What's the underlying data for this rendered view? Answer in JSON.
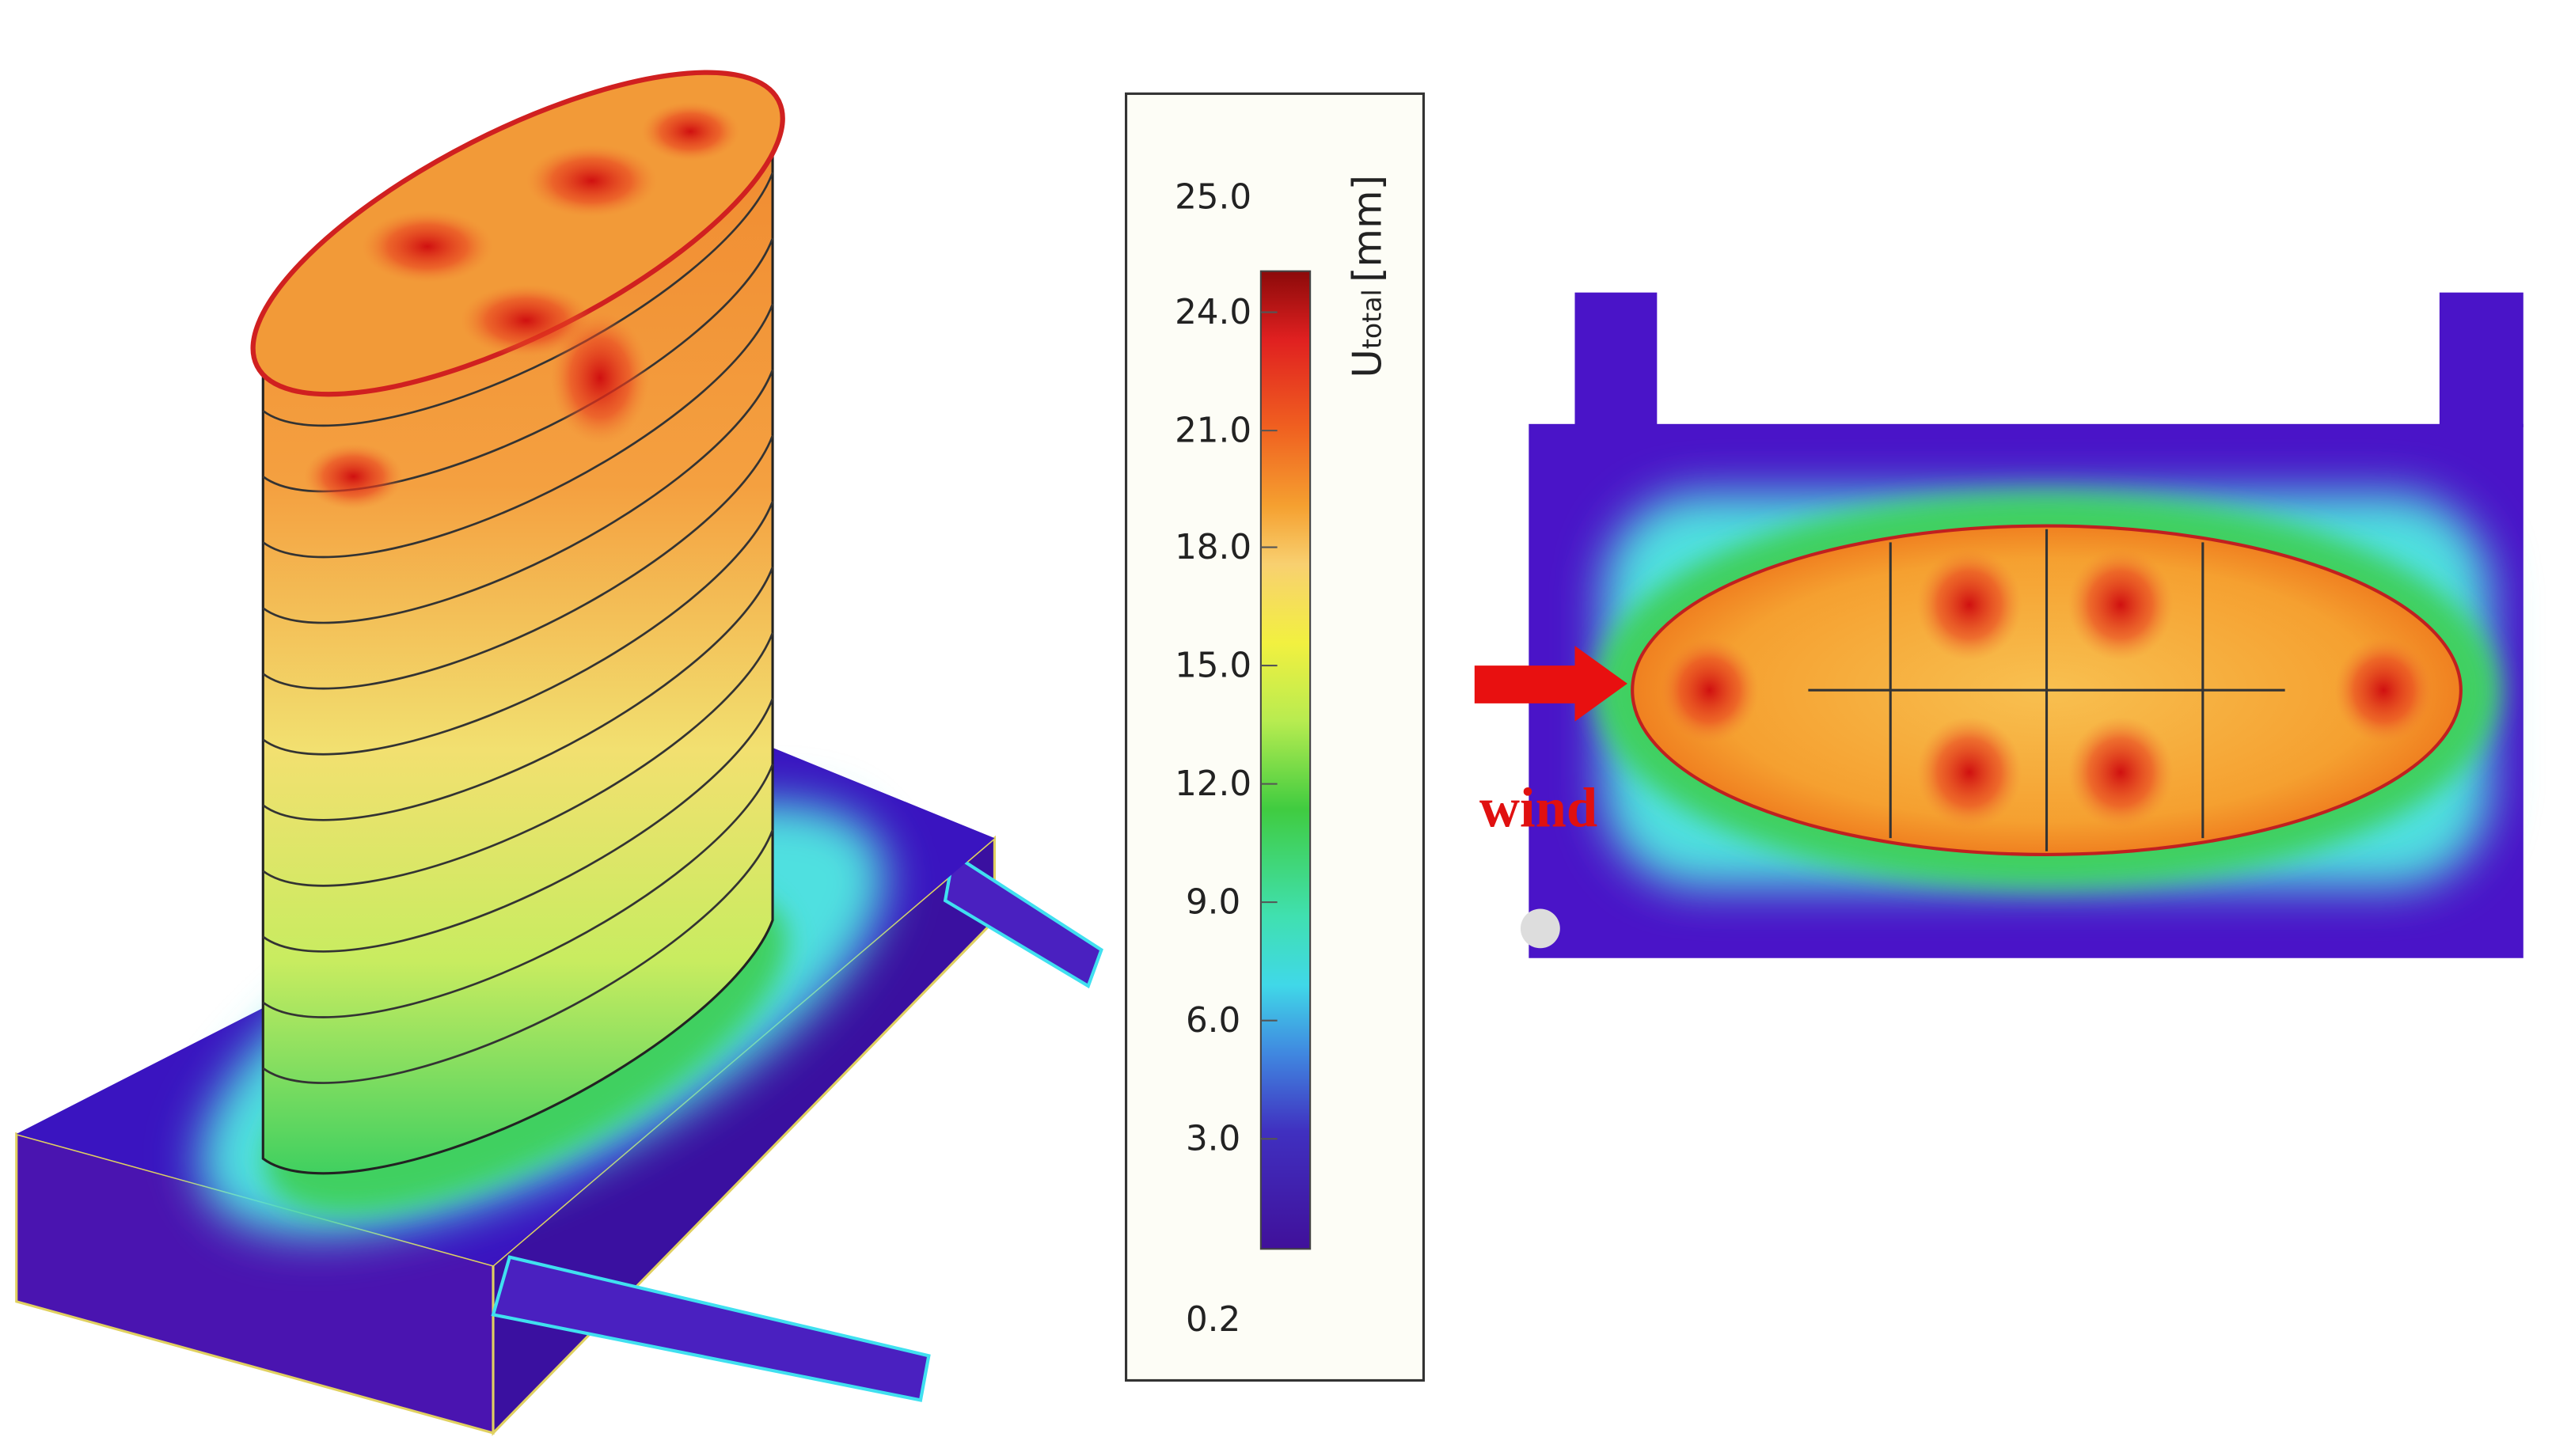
{
  "legend": {
    "symbol": "U",
    "subscript": "total",
    "unit": "[mm]",
    "ticks": [
      "25.0",
      "24.0",
      "21.0",
      "18.0",
      "15.0",
      "12.0",
      "9.0",
      "6.0",
      "3.0",
      "0.2"
    ]
  },
  "annotation": {
    "label": "wind"
  }
}
